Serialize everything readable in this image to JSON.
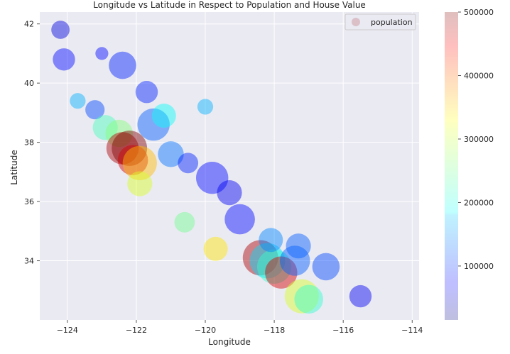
{
  "chart_data": {
    "type": "scatter",
    "title": "Longitude vs Latitude in Respect to Population and House Value",
    "xlabel": "Longitude",
    "ylabel": "Latitude",
    "xlim": [
      -124.8,
      -113.8
    ],
    "ylim": [
      32.0,
      42.4
    ],
    "x_ticks": [
      -124,
      -122,
      -120,
      -118,
      -116,
      -114
    ],
    "x_tick_labels": [
      "−124",
      "−122",
      "−120",
      "−118",
      "−116",
      "−114"
    ],
    "y_ticks": [
      34,
      36,
      38,
      40,
      42
    ],
    "y_tick_labels": [
      "34",
      "36",
      "38",
      "40",
      "42"
    ],
    "grid": true,
    "legend": {
      "position": "top-right",
      "entries": [
        "population"
      ]
    },
    "colorbar": {
      "label": "",
      "min": 15000,
      "max": 500000,
      "ticks": [
        100000,
        200000,
        300000,
        400000,
        500000
      ],
      "tick_labels": [
        "100000",
        "200000",
        "300000",
        "400000",
        "500000"
      ],
      "colormap": "jet",
      "alpha": 0.25
    },
    "points": [
      {
        "x": -124.2,
        "y": 41.8,
        "v": 60000,
        "s": 800
      },
      {
        "x": -124.1,
        "y": 40.8,
        "v": 80000,
        "s": 1200
      },
      {
        "x": -123.7,
        "y": 39.4,
        "v": 160000,
        "s": 600
      },
      {
        "x": -123.2,
        "y": 39.1,
        "v": 110000,
        "s": 900
      },
      {
        "x": -122.9,
        "y": 38.5,
        "v": 230000,
        "s": 1500
      },
      {
        "x": -122.5,
        "y": 38.3,
        "v": 260000,
        "s": 1800
      },
      {
        "x": -122.4,
        "y": 37.8,
        "v": 480000,
        "s": 2500
      },
      {
        "x": -122.2,
        "y": 37.8,
        "v": 500000,
        "s": 3000
      },
      {
        "x": -122.1,
        "y": 37.4,
        "v": 460000,
        "s": 2200
      },
      {
        "x": -121.9,
        "y": 37.3,
        "v": 350000,
        "s": 2800
      },
      {
        "x": -121.9,
        "y": 36.6,
        "v": 300000,
        "s": 1500
      },
      {
        "x": -122.4,
        "y": 40.6,
        "v": 90000,
        "s": 1800
      },
      {
        "x": -121.5,
        "y": 38.6,
        "v": 120000,
        "s": 2500
      },
      {
        "x": -121.2,
        "y": 38.9,
        "v": 200000,
        "s": 1400
      },
      {
        "x": -121.0,
        "y": 37.6,
        "v": 130000,
        "s": 1600
      },
      {
        "x": -121.7,
        "y": 39.7,
        "v": 90000,
        "s": 1200
      },
      {
        "x": -120.5,
        "y": 37.3,
        "v": 90000,
        "s": 1000
      },
      {
        "x": -119.8,
        "y": 36.8,
        "v": 80000,
        "s": 2500
      },
      {
        "x": -119.3,
        "y": 36.3,
        "v": 70000,
        "s": 1500
      },
      {
        "x": -119.0,
        "y": 35.4,
        "v": 80000,
        "s": 2200
      },
      {
        "x": -120.6,
        "y": 35.3,
        "v": 250000,
        "s": 1000
      },
      {
        "x": -119.7,
        "y": 34.4,
        "v": 330000,
        "s": 1400
      },
      {
        "x": -118.4,
        "y": 34.1,
        "v": 480000,
        "s": 3000
      },
      {
        "x": -118.2,
        "y": 34.0,
        "v": 180000,
        "s": 3000
      },
      {
        "x": -118.0,
        "y": 33.8,
        "v": 220000,
        "s": 2800
      },
      {
        "x": -117.8,
        "y": 33.6,
        "v": 460000,
        "s": 2500
      },
      {
        "x": -117.4,
        "y": 34.0,
        "v": 120000,
        "s": 2200
      },
      {
        "x": -117.2,
        "y": 32.8,
        "v": 300000,
        "s": 2800
      },
      {
        "x": -117.0,
        "y": 32.7,
        "v": 220000,
        "s": 2000
      },
      {
        "x": -116.5,
        "y": 33.8,
        "v": 110000,
        "s": 1800
      },
      {
        "x": -115.5,
        "y": 32.8,
        "v": 70000,
        "s": 1200
      },
      {
        "x": -120.0,
        "y": 39.2,
        "v": 160000,
        "s": 600
      },
      {
        "x": -123.0,
        "y": 41.0,
        "v": 80000,
        "s": 400
      },
      {
        "x": -117.3,
        "y": 34.5,
        "v": 120000,
        "s": 1500
      },
      {
        "x": -118.1,
        "y": 34.7,
        "v": 140000,
        "s": 1400
      }
    ]
  }
}
